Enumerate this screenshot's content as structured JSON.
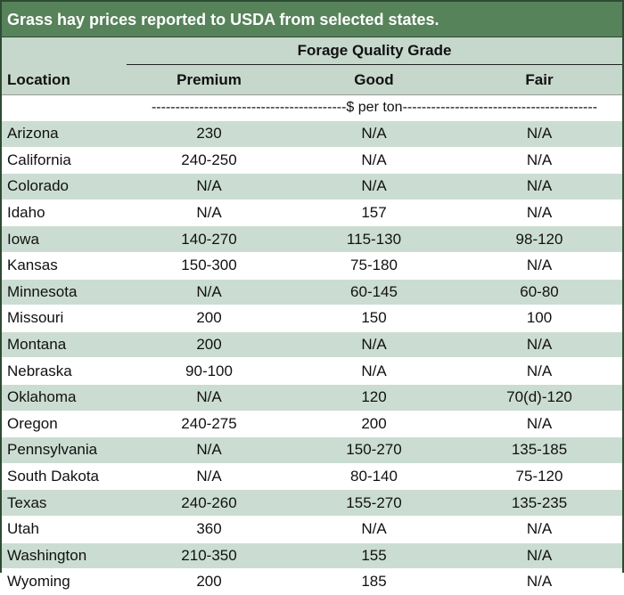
{
  "title": "Grass hay prices reported to USDA from selected states.",
  "header": {
    "group_label": "Forage Quality Grade",
    "location_label": "Location",
    "grades": [
      "Premium",
      "Good",
      "Fair"
    ]
  },
  "unit_label": "-----------------------------------------$ per ton-----------------------------------------",
  "rows": [
    {
      "location": "Arizona",
      "premium": "230",
      "good": "N/A",
      "fair": "N/A"
    },
    {
      "location": "California",
      "premium": "240-250",
      "good": "N/A",
      "fair": "N/A"
    },
    {
      "location": "Colorado",
      "premium": "N/A",
      "good": "N/A",
      "fair": "N/A"
    },
    {
      "location": "Idaho",
      "premium": "N/A",
      "good": "157",
      "fair": "N/A"
    },
    {
      "location": "Iowa",
      "premium": "140-270",
      "good": "115-130",
      "fair": "98-120"
    },
    {
      "location": "Kansas",
      "premium": "150-300",
      "good": "75-180",
      "fair": "N/A"
    },
    {
      "location": "Minnesota",
      "premium": "N/A",
      "good": "60-145",
      "fair": "60-80"
    },
    {
      "location": "Missouri",
      "premium": "200",
      "good": "150",
      "fair": "100"
    },
    {
      "location": "Montana",
      "premium": "200",
      "good": "N/A",
      "fair": "N/A"
    },
    {
      "location": "Nebraska",
      "premium": "90-100",
      "good": "N/A",
      "fair": "N/A"
    },
    {
      "location": "Oklahoma",
      "premium": "N/A",
      "good": "120",
      "fair": "70(d)-120"
    },
    {
      "location": "Oregon",
      "premium": "240-275",
      "good": "200",
      "fair": "N/A"
    },
    {
      "location": "Pennsylvania",
      "premium": "N/A",
      "good": "150-270",
      "fair": "135-185"
    },
    {
      "location": "South Dakota",
      "premium": "N/A",
      "good": "80-140",
      "fair": "75-120"
    },
    {
      "location": "Texas",
      "premium": "240-260",
      "good": "155-270",
      "fair": "135-235"
    },
    {
      "location": "Utah",
      "premium": "360",
      "good": "N/A",
      "fair": "N/A"
    },
    {
      "location": "Washington",
      "premium": "210-350",
      "good": "155",
      "fair": "N/A"
    },
    {
      "location": "Wyoming",
      "premium": "200",
      "good": "185",
      "fair": "N/A"
    }
  ],
  "colors": {
    "title_bg": "#56835a",
    "header_bg": "#c6d8cc",
    "alt_row_bg": "#cbddd2",
    "border": "#2f4a32"
  }
}
